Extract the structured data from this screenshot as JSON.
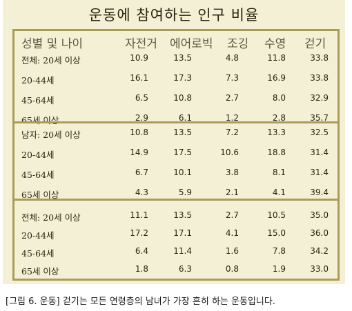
{
  "title": "운동에 참여하는 인구 비율",
  "columns": [
    "성별 및 나이",
    "자전거",
    "에어로빅",
    "조깅",
    "수영",
    "걷기"
  ],
  "sections": [
    {
      "rows": [
        {
          "label": "전체: 20세 이상",
          "values": [
            "10.9",
            "13.5",
            "4.8",
            "11.8",
            "33.8"
          ]
        },
        {
          "label": "20-44세",
          "values": [
            "16.1",
            "17.3",
            "7.3",
            "16.9",
            "33.8"
          ]
        },
        {
          "label": "45-64세",
          "values": [
            "6.5",
            "10.8",
            "2.7",
            "8.0",
            "32.9"
          ]
        },
        {
          "label": "65세 이상",
          "values": [
            "2.9",
            "6.1",
            "1.2",
            "2.8",
            "35.7"
          ]
        }
      ]
    },
    {
      "rows": [
        {
          "label": "남자: 20세 이상",
          "values": [
            "10.8",
            "13.5",
            "7.2",
            "13.3",
            "32.5"
          ]
        },
        {
          "label": "20-44세",
          "values": [
            "14.9",
            "17.5",
            "10.6",
            "18.8",
            "31.4"
          ]
        },
        {
          "label": "45-64세",
          "values": [
            "6.7",
            "10.1",
            "3.8",
            "8.1",
            "31.4"
          ]
        },
        {
          "label": "65세 이상",
          "values": [
            "4.3",
            "5.9",
            "2.1",
            "4.1",
            "39.4"
          ]
        }
      ]
    },
    {
      "rows": [
        {
          "label": "전체: 20세 이상",
          "values": [
            "11.1",
            "13.5",
            "2.7",
            "10.5",
            "35.0"
          ]
        },
        {
          "label": "20-44세",
          "values": [
            "17.2",
            "17.1",
            "4.1",
            "15.0",
            "36.0"
          ]
        },
        {
          "label": "45-64세",
          "values": [
            "6.4",
            "11.4",
            "1.6",
            "7.8",
            "34.2"
          ]
        },
        {
          "label": "65세 이상",
          "values": [
            "1.8",
            "6.3",
            "0.8",
            "1.9",
            "33.0"
          ]
        }
      ]
    }
  ],
  "caption": "[그림 6. 운동] 걷기는 모든 연령층의 남녀가 가장 흔히 하는 운동입니다.",
  "colors": {
    "background": "#f3f0d6",
    "border": "#a99c58",
    "header_text": "#5e5640"
  }
}
